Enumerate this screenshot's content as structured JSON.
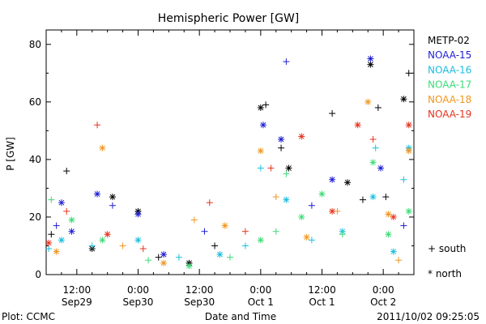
{
  "chart_data": {
    "type": "scatter",
    "title": "Hemispheric Power [GW]",
    "ylabel": "P [GW]",
    "xlabel": "Date and Time",
    "ylim": [
      0,
      85
    ],
    "yticks": [
      0,
      20,
      40,
      60,
      80
    ],
    "x_ticks": [
      {
        "time": "12:00",
        "date": "Sep29"
      },
      {
        "time": "0:00",
        "date": "Sep30"
      },
      {
        "time": "12:00",
        "date": "Sep30"
      },
      {
        "time": "0:00",
        "date": "Oct 1"
      },
      {
        "time": "12:00",
        "date": "Oct 1"
      },
      {
        "time": "0:00",
        "date": "Oct 2"
      }
    ],
    "x_start": "2011-09-29 06:00",
    "x_end": "2011-10-02 06:00",
    "marker_legend": {
      "south": "+ south",
      "north": "* north"
    },
    "series": [
      {
        "name": "METP-02",
        "color": "#000000",
        "points": [
          {
            "t": "2011-09-29 07:00",
            "v": 14,
            "m": "+"
          },
          {
            "t": "2011-09-29 10:00",
            "v": 36,
            "m": "+"
          },
          {
            "t": "2011-09-29 15:00",
            "v": 9,
            "m": "*"
          },
          {
            "t": "2011-09-29 19:00",
            "v": 27,
            "m": "*"
          },
          {
            "t": "2011-09-30 00:00",
            "v": 22,
            "m": "*"
          },
          {
            "t": "2011-09-30 04:00",
            "v": 6,
            "m": "+"
          },
          {
            "t": "2011-09-30 10:00",
            "v": 4,
            "m": "*"
          },
          {
            "t": "2011-09-30 15:00",
            "v": 10,
            "m": "+"
          },
          {
            "t": "2011-10-01 00:00",
            "v": 58,
            "m": "*"
          },
          {
            "t": "2011-10-01 01:00",
            "v": 59,
            "m": "+"
          },
          {
            "t": "2011-10-01 04:00",
            "v": 44,
            "m": "+"
          },
          {
            "t": "2011-10-01 05:30",
            "v": 37,
            "m": "*"
          },
          {
            "t": "2011-10-01 14:00",
            "v": 56,
            "m": "+"
          },
          {
            "t": "2011-10-01 17:00",
            "v": 32,
            "m": "*"
          },
          {
            "t": "2011-10-01 20:00",
            "v": 26,
            "m": "+"
          },
          {
            "t": "2011-10-01 21:30",
            "v": 73,
            "m": "*"
          },
          {
            "t": "2011-10-01 23:00",
            "v": 58,
            "m": "+"
          },
          {
            "t": "2011-10-02 00:30",
            "v": 27,
            "m": "+"
          },
          {
            "t": "2011-10-02 04:00",
            "v": 61,
            "m": "*"
          },
          {
            "t": "2011-10-02 05:00",
            "v": 70,
            "m": "+"
          }
        ]
      },
      {
        "name": "NOAA-15",
        "color": "#1e1ed2",
        "points": [
          {
            "t": "2011-09-29 08:00",
            "v": 17,
            "m": "+"
          },
          {
            "t": "2011-09-29 09:00",
            "v": 25,
            "m": "*"
          },
          {
            "t": "2011-09-29 11:00",
            "v": 15,
            "m": "*"
          },
          {
            "t": "2011-09-29 16:00",
            "v": 28,
            "m": "*"
          },
          {
            "t": "2011-09-29 19:00",
            "v": 24,
            "m": "+"
          },
          {
            "t": "2011-09-30 00:00",
            "v": 21,
            "m": "*"
          },
          {
            "t": "2011-09-30 05:00",
            "v": 7,
            "m": "*"
          },
          {
            "t": "2011-09-30 13:00",
            "v": 15,
            "m": "+"
          },
          {
            "t": "2011-10-01 00:30",
            "v": 52,
            "m": "*"
          },
          {
            "t": "2011-10-01 04:00",
            "v": 47,
            "m": "*"
          },
          {
            "t": "2011-10-01 05:00",
            "v": 74,
            "m": "+"
          },
          {
            "t": "2011-10-01 10:00",
            "v": 24,
            "m": "+"
          },
          {
            "t": "2011-10-01 14:00",
            "v": 33,
            "m": "*"
          },
          {
            "t": "2011-10-01 21:30",
            "v": 75,
            "m": "*"
          },
          {
            "t": "2011-10-01 23:30",
            "v": 37,
            "m": "*"
          },
          {
            "t": "2011-10-02 04:00",
            "v": 17,
            "m": "+"
          }
        ]
      },
      {
        "name": "NOAA-16",
        "color": "#19bede",
        "points": [
          {
            "t": "2011-09-29 06:30",
            "v": 9,
            "m": "+"
          },
          {
            "t": "2011-09-29 09:00",
            "v": 12,
            "m": "*"
          },
          {
            "t": "2011-09-29 15:00",
            "v": 10,
            "m": "+"
          },
          {
            "t": "2011-09-30 00:00",
            "v": 12,
            "m": "*"
          },
          {
            "t": "2011-09-30 08:00",
            "v": 6,
            "m": "+"
          },
          {
            "t": "2011-09-30 16:00",
            "v": 7,
            "m": "*"
          },
          {
            "t": "2011-09-30 21:00",
            "v": 10,
            "m": "+"
          },
          {
            "t": "2011-10-01 00:00",
            "v": 37,
            "m": "+"
          },
          {
            "t": "2011-10-01 05:00",
            "v": 26,
            "m": "*"
          },
          {
            "t": "2011-10-01 10:00",
            "v": 12,
            "m": "+"
          },
          {
            "t": "2011-10-01 16:00",
            "v": 15,
            "m": "*"
          },
          {
            "t": "2011-10-01 22:00",
            "v": 27,
            "m": "*"
          },
          {
            "t": "2011-10-01 22:30",
            "v": 44,
            "m": "+"
          },
          {
            "t": "2011-10-02 02:00",
            "v": 8,
            "m": "*"
          },
          {
            "t": "2011-10-02 04:00",
            "v": 33,
            "m": "+"
          },
          {
            "t": "2011-10-02 05:00",
            "v": 44,
            "m": "*"
          }
        ]
      },
      {
        "name": "NOAA-17",
        "color": "#3cdc78",
        "points": [
          {
            "t": "2011-09-29 07:00",
            "v": 26,
            "m": "+"
          },
          {
            "t": "2011-09-29 11:00",
            "v": 19,
            "m": "*"
          },
          {
            "t": "2011-09-29 17:00",
            "v": 12,
            "m": "*"
          },
          {
            "t": "2011-09-30 02:00",
            "v": 5,
            "m": "+"
          },
          {
            "t": "2011-09-30 10:00",
            "v": 3,
            "m": "*"
          },
          {
            "t": "2011-09-30 18:00",
            "v": 6,
            "m": "+"
          },
          {
            "t": "2011-10-01 00:00",
            "v": 12,
            "m": "*"
          },
          {
            "t": "2011-10-01 03:00",
            "v": 15,
            "m": "+"
          },
          {
            "t": "2011-10-01 05:00",
            "v": 35,
            "m": "+"
          },
          {
            "t": "2011-10-01 08:00",
            "v": 20,
            "m": "*"
          },
          {
            "t": "2011-10-01 12:00",
            "v": 28,
            "m": "*"
          },
          {
            "t": "2011-10-01 16:00",
            "v": 14,
            "m": "+"
          },
          {
            "t": "2011-10-01 22:00",
            "v": 39,
            "m": "*"
          },
          {
            "t": "2011-10-02 01:00",
            "v": 14,
            "m": "*"
          },
          {
            "t": "2011-10-02 05:00",
            "v": 22,
            "m": "*"
          }
        ]
      },
      {
        "name": "NOAA-18",
        "color": "#f0961e",
        "points": [
          {
            "t": "2011-09-29 08:00",
            "v": 8,
            "m": "*"
          },
          {
            "t": "2011-09-29 17:00",
            "v": 44,
            "m": "*"
          },
          {
            "t": "2011-09-29 21:00",
            "v": 10,
            "m": "+"
          },
          {
            "t": "2011-09-30 05:00",
            "v": 4,
            "m": "*"
          },
          {
            "t": "2011-09-30 11:00",
            "v": 19,
            "m": "+"
          },
          {
            "t": "2011-09-30 17:00",
            "v": 17,
            "m": "*"
          },
          {
            "t": "2011-10-01 00:00",
            "v": 43,
            "m": "*"
          },
          {
            "t": "2011-10-01 03:00",
            "v": 27,
            "m": "+"
          },
          {
            "t": "2011-10-01 09:00",
            "v": 13,
            "m": "*"
          },
          {
            "t": "2011-10-01 15:00",
            "v": 22,
            "m": "+"
          },
          {
            "t": "2011-10-01 21:00",
            "v": 60,
            "m": "*"
          },
          {
            "t": "2011-10-02 01:00",
            "v": 21,
            "m": "*"
          },
          {
            "t": "2011-10-02 03:00",
            "v": 5,
            "m": "+"
          },
          {
            "t": "2011-10-02 05:00",
            "v": 43,
            "m": "*"
          }
        ]
      },
      {
        "name": "NOAA-19",
        "color": "#e6321e",
        "points": [
          {
            "t": "2011-09-29 06:30",
            "v": 11,
            "m": "*"
          },
          {
            "t": "2011-09-29 10:00",
            "v": 22,
            "m": "+"
          },
          {
            "t": "2011-09-29 16:00",
            "v": 52,
            "m": "+"
          },
          {
            "t": "2011-09-29 18:00",
            "v": 14,
            "m": "*"
          },
          {
            "t": "2011-09-30 01:00",
            "v": 9,
            "m": "+"
          },
          {
            "t": "2011-09-30 14:00",
            "v": 25,
            "m": "+"
          },
          {
            "t": "2011-09-30 21:00",
            "v": 15,
            "m": "+"
          },
          {
            "t": "2011-10-01 02:00",
            "v": 37,
            "m": "+"
          },
          {
            "t": "2011-10-01 08:00",
            "v": 48,
            "m": "*"
          },
          {
            "t": "2011-10-01 14:00",
            "v": 22,
            "m": "*"
          },
          {
            "t": "2011-10-01 19:00",
            "v": 52,
            "m": "*"
          },
          {
            "t": "2011-10-01 22:00",
            "v": 47,
            "m": "+"
          },
          {
            "t": "2011-10-02 02:00",
            "v": 20,
            "m": "*"
          },
          {
            "t": "2011-10-02 05:00",
            "v": 52,
            "m": "*"
          }
        ]
      }
    ]
  },
  "footer": {
    "plot_credit": "Plot: CCMC",
    "timestamp": "2011/10/02 09:25:05"
  }
}
